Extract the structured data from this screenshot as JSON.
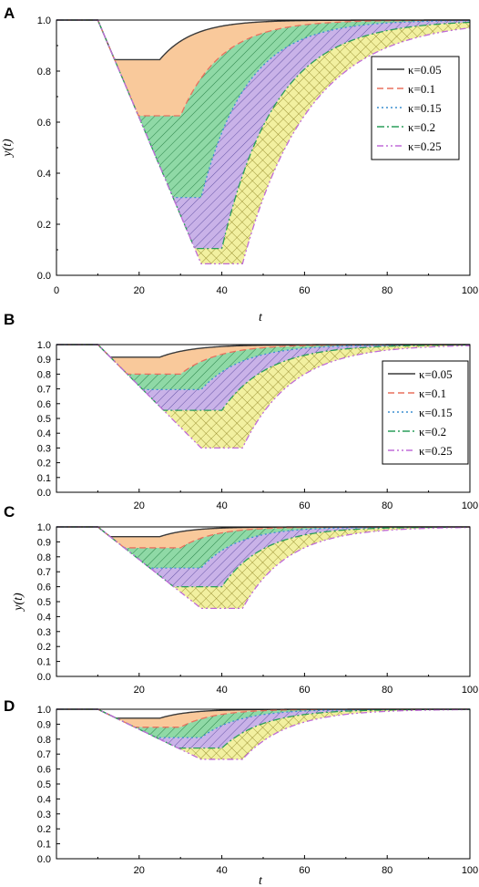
{
  "chart_data": [
    {
      "panel": "A",
      "type": "area",
      "xlabel": "t",
      "ylabel": "y(t)",
      "xlim": [
        0,
        100
      ],
      "ylim": [
        0,
        1.0
      ],
      "xticks": [
        "0",
        "20",
        "40",
        "60",
        "80",
        "100"
      ],
      "yticks": [
        "0.0",
        "0.2",
        "0.4",
        "0.6",
        "0.8",
        "1.0"
      ],
      "legend_position": "right",
      "series": [
        {
          "name": "κ=0.05",
          "color": "#3a3a3a",
          "dash": "solid",
          "fill": "#f9c99b",
          "hatch": "none",
          "t0": 10,
          "t_hold": 25,
          "t_end": 25,
          "min": 0.845,
          "recover_tau": 8
        },
        {
          "name": "κ=0.1",
          "color": "#e8705f",
          "dash": "dash",
          "fill": "#8fd9a6",
          "hatch": "diag",
          "t0": 10,
          "t_hold": 20,
          "t_end": 30,
          "min": 0.625,
          "recover_tau": 10
        },
        {
          "name": "κ=0.15",
          "color": "#3b8fd0",
          "dash": "dot",
          "fill": "#c9b2e8",
          "hatch": "diag2",
          "t0": 10,
          "t_hold": 25,
          "t_end": 35,
          "min": 0.305,
          "recover_tau": 11
        },
        {
          "name": "κ=0.2",
          "color": "#2a9d5a",
          "dash": "dashdot",
          "fill": "#f2f0a0",
          "hatch": "cross",
          "t0": 10,
          "t_hold": 30,
          "t_end": 40,
          "min": 0.105,
          "recover_tau": 13
        },
        {
          "name": "κ=0.25",
          "color": "#c06bd8",
          "dash": "dashdotdot",
          "fill": "none",
          "hatch": "none",
          "t0": 10,
          "t_hold": 35,
          "t_end": 45,
          "min": 0.045,
          "recover_tau": 16
        }
      ]
    },
    {
      "panel": "B",
      "type": "area",
      "xlabel": "",
      "ylabel": "",
      "xlim": [
        0,
        100
      ],
      "ylim": [
        0,
        1.0
      ],
      "xticks": [
        "20",
        "40",
        "60",
        "80",
        "100"
      ],
      "yticks": [
        "0.0",
        "0.1",
        "0.2",
        "0.3",
        "0.4",
        "0.5",
        "0.6",
        "0.7",
        "0.8",
        "0.9",
        "1.0"
      ],
      "legend_position": "right",
      "series": [
        {
          "name": "κ=0.05",
          "t_end": 25,
          "min": 0.915,
          "recover_tau": 8
        },
        {
          "name": "κ=0.1",
          "t_end": 30,
          "min": 0.8,
          "recover_tau": 9
        },
        {
          "name": "κ=0.15",
          "t_end": 35,
          "min": 0.695,
          "recover_tau": 10
        },
        {
          "name": "κ=0.2",
          "t_end": 40,
          "min": 0.555,
          "recover_tau": 11
        },
        {
          "name": "κ=0.25",
          "t_end": 45,
          "min": 0.3,
          "recover_tau": 12
        }
      ]
    },
    {
      "panel": "C",
      "type": "area",
      "xlabel": "",
      "ylabel": "y(t)",
      "xlim": [
        0,
        100
      ],
      "ylim": [
        0,
        1.0
      ],
      "xticks": [
        "20",
        "40",
        "60",
        "80",
        "100"
      ],
      "yticks": [
        "0.0",
        "0.1",
        "0.2",
        "0.3",
        "0.4",
        "0.5",
        "0.6",
        "0.7",
        "0.8",
        "0.9",
        "1.0"
      ],
      "legend_position": "none",
      "series": [
        {
          "name": "κ=0.05",
          "t_end": 25,
          "min": 0.935,
          "recover_tau": 7
        },
        {
          "name": "κ=0.1",
          "t_end": 30,
          "min": 0.86,
          "recover_tau": 8
        },
        {
          "name": "κ=0.15",
          "t_end": 35,
          "min": 0.725,
          "recover_tau": 9
        },
        {
          "name": "κ=0.2",
          "t_end": 40,
          "min": 0.6,
          "recover_tau": 10
        },
        {
          "name": "κ=0.25",
          "t_end": 45,
          "min": 0.455,
          "recover_tau": 11
        }
      ]
    },
    {
      "panel": "D",
      "type": "area",
      "xlabel": "t",
      "ylabel": "",
      "xlim": [
        0,
        100
      ],
      "ylim": [
        0,
        1.0
      ],
      "xticks": [
        "20",
        "40",
        "60",
        "80",
        "100"
      ],
      "yticks": [
        "0.0",
        "0.1",
        "0.2",
        "0.3",
        "0.4",
        "0.5",
        "0.6",
        "0.7",
        "0.8",
        "0.9",
        "1.0"
      ],
      "legend_position": "none",
      "series": [
        {
          "name": "κ=0.05",
          "t_end": 25,
          "min": 0.94,
          "recover_tau": 7
        },
        {
          "name": "κ=0.1",
          "t_end": 30,
          "min": 0.88,
          "recover_tau": 8
        },
        {
          "name": "κ=0.15",
          "t_end": 35,
          "min": 0.81,
          "recover_tau": 9
        },
        {
          "name": "κ=0.2",
          "t_end": 40,
          "min": 0.74,
          "recover_tau": 10
        },
        {
          "name": "κ=0.25",
          "t_end": 45,
          "min": 0.665,
          "recover_tau": 11
        }
      ]
    }
  ],
  "styles": {
    "colors": [
      "#3a3a3a",
      "#e8705f",
      "#3b8fd0",
      "#2a9d5a",
      "#c06bd8"
    ],
    "fills": [
      "#f9c99b",
      "#8fd9a6",
      "#c9b2e8",
      "#f2f0a0"
    ],
    "hatch_colors": [
      "none",
      "#1f7a3f",
      "#5b4aa0",
      "#8a7f20"
    ]
  }
}
